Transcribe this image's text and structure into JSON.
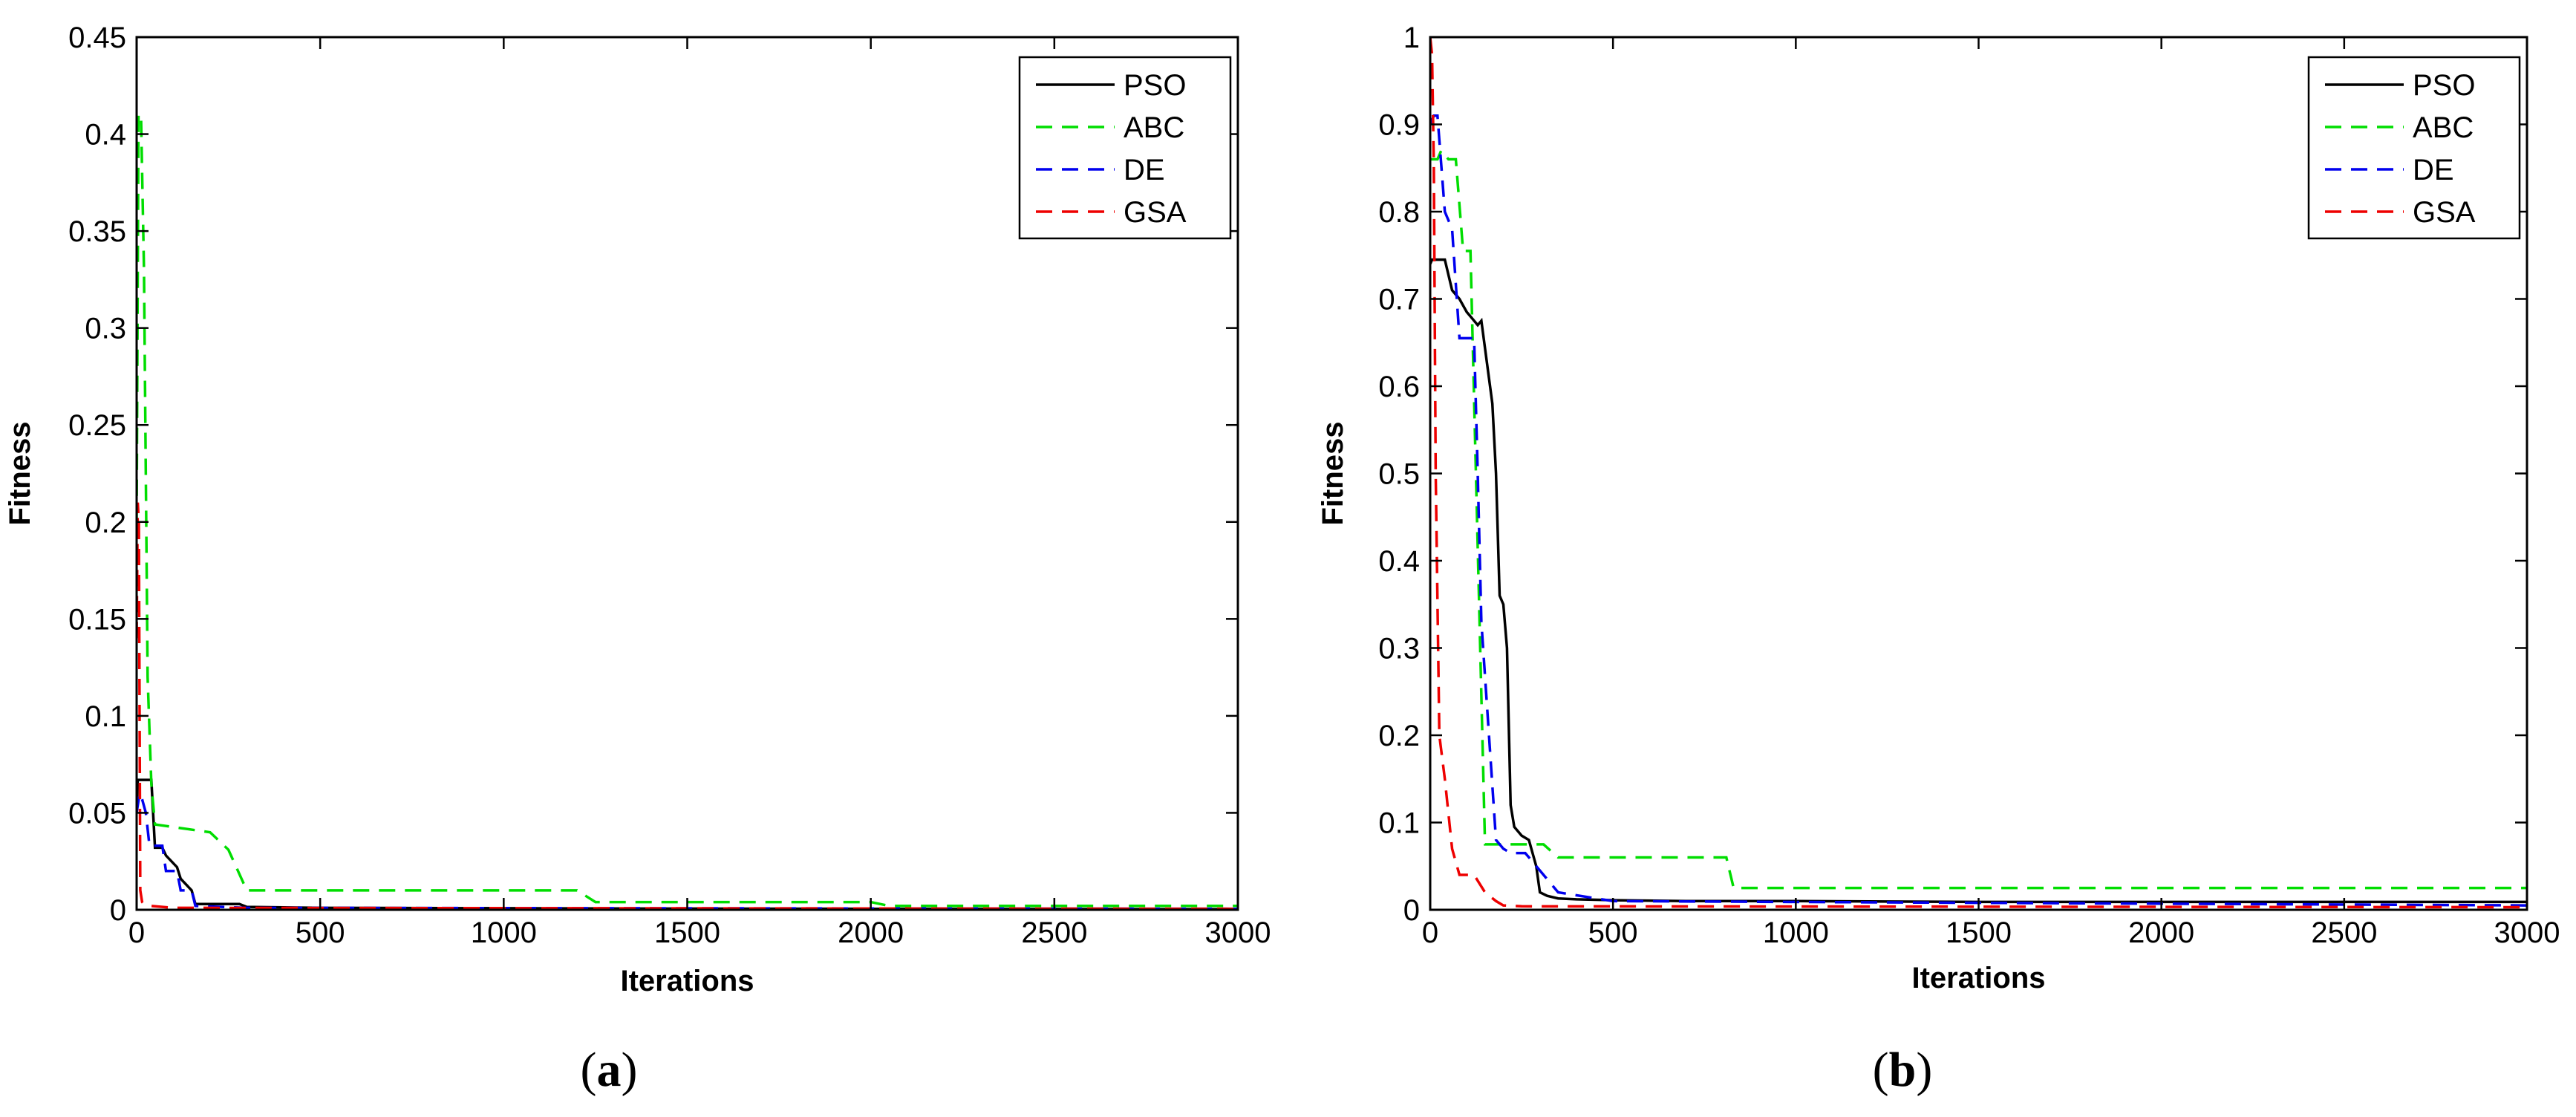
{
  "chart_data": [
    {
      "type": "line",
      "panel_label": {
        "open": "(",
        "letter": "a",
        "close": ")"
      },
      "title": "",
      "xlabel": "Iterations",
      "ylabel": "Fitness",
      "xlim": [
        0,
        3000
      ],
      "ylim": [
        0,
        0.45
      ],
      "xticks": [
        0,
        500,
        1000,
        1500,
        2000,
        2500,
        3000
      ],
      "yticks": [
        0,
        0.05,
        0.1,
        0.15,
        0.2,
        0.25,
        0.3,
        0.35,
        0.4,
        0.45
      ],
      "ytick_labels": [
        "0",
        "0.05",
        "0.1",
        "0.15",
        "0.2",
        "0.25",
        "0.3",
        "0.35",
        "0.4",
        "0.45"
      ],
      "grid": false,
      "legend_position": "top-right",
      "series": [
        {
          "name": "PSO",
          "color": "#000000",
          "dash": "solid",
          "x": [
            0,
            3,
            6,
            10,
            15,
            20,
            40,
            50,
            70,
            80,
            110,
            120,
            150,
            160,
            200,
            280,
            300,
            500,
            1000,
            1500,
            2000,
            2500,
            3000
          ],
          "y": [
            0.05,
            0.067,
            0.067,
            0.067,
            0.067,
            0.067,
            0.067,
            0.032,
            0.032,
            0.028,
            0.022,
            0.016,
            0.01,
            0.003,
            0.003,
            0.003,
            0.0015,
            0.001,
            0.0008,
            0.0006,
            0.0005,
            0.0004,
            0.0003
          ]
        },
        {
          "name": "ABC",
          "color": "#00dd00",
          "dash": "dashed",
          "x": [
            0,
            5,
            12,
            20,
            30,
            40,
            50,
            200,
            250,
            300,
            1200,
            1250,
            2000,
            2050,
            3000
          ],
          "y": [
            0.2,
            0.41,
            0.41,
            0.33,
            0.12,
            0.065,
            0.044,
            0.04,
            0.031,
            0.01,
            0.01,
            0.004,
            0.004,
            0.002,
            0.002
          ]
        },
        {
          "name": "DE",
          "color": "#0000ee",
          "dash": "dashed",
          "x": [
            0,
            8,
            15,
            25,
            35,
            70,
            80,
            110,
            120,
            150,
            160,
            300,
            3000
          ],
          "y": [
            0.05,
            0.06,
            0.057,
            0.05,
            0.033,
            0.033,
            0.02,
            0.02,
            0.01,
            0.01,
            0.002,
            0.001,
            0.0005
          ]
        },
        {
          "name": "GSA",
          "color": "#ee0000",
          "dash": "dashed",
          "x": [
            0,
            3,
            6,
            10,
            15,
            20,
            40,
            100,
            3000
          ],
          "y": [
            0.14,
            0.21,
            0.2,
            0.01,
            0.004,
            0.003,
            0.002,
            0.001,
            0.0005
          ]
        }
      ]
    },
    {
      "type": "line",
      "panel_label": {
        "open": "(",
        "letter": "b",
        "close": ")"
      },
      "title": "",
      "xlabel": "Iterations",
      "ylabel": "Fitness",
      "xlim": [
        0,
        3000
      ],
      "ylim": [
        0,
        1
      ],
      "xticks": [
        0,
        500,
        1000,
        1500,
        2000,
        2500,
        3000
      ],
      "yticks": [
        0,
        0.1,
        0.2,
        0.3,
        0.4,
        0.5,
        0.6,
        0.7,
        0.8,
        0.9,
        1
      ],
      "ytick_labels": [
        "0",
        "0.1",
        "0.2",
        "0.3",
        "0.4",
        "0.5",
        "0.6",
        "0.7",
        "0.8",
        "0.9",
        "1"
      ],
      "grid": false,
      "legend_position": "top-right",
      "series": [
        {
          "name": "PSO",
          "color": "#000000",
          "dash": "solid",
          "x": [
            0,
            5,
            40,
            60,
            80,
            100,
            110,
            130,
            140,
            170,
            180,
            190,
            200,
            210,
            220,
            230,
            250,
            270,
            290,
            300,
            320,
            350,
            400,
            500,
            700,
            1000,
            1500,
            2000,
            2500,
            3000
          ],
          "y": [
            0.74,
            0.745,
            0.745,
            0.71,
            0.7,
            0.685,
            0.68,
            0.67,
            0.675,
            0.58,
            0.5,
            0.36,
            0.35,
            0.3,
            0.12,
            0.095,
            0.085,
            0.08,
            0.05,
            0.02,
            0.016,
            0.013,
            0.012,
            0.011,
            0.01,
            0.01,
            0.009,
            0.009,
            0.009,
            0.009
          ]
        },
        {
          "name": "ABC",
          "color": "#00dd00",
          "dash": "dashed",
          "x": [
            0,
            20,
            30,
            50,
            70,
            90,
            110,
            150,
            210,
            310,
            350,
            810,
            830,
            3000
          ],
          "y": [
            0.86,
            0.86,
            0.87,
            0.86,
            0.86,
            0.755,
            0.755,
            0.075,
            0.075,
            0.075,
            0.06,
            0.06,
            0.025,
            0.025
          ]
        },
        {
          "name": "DE",
          "color": "#0000ee",
          "dash": "dashed",
          "x": [
            0,
            10,
            20,
            40,
            60,
            80,
            120,
            130,
            140,
            180,
            200,
            220,
            240,
            260,
            300,
            350,
            500,
            3000
          ],
          "y": [
            0.9,
            0.91,
            0.91,
            0.8,
            0.78,
            0.655,
            0.655,
            0.5,
            0.33,
            0.08,
            0.07,
            0.065,
            0.065,
            0.065,
            0.045,
            0.02,
            0.01,
            0.005
          ]
        },
        {
          "name": "GSA",
          "color": "#ee0000",
          "dash": "dashed",
          "x": [
            0,
            5,
            10,
            15,
            25,
            40,
            60,
            80,
            120,
            150,
            180,
            200,
            250,
            3000
          ],
          "y": [
            1,
            0.98,
            0.85,
            0.5,
            0.2,
            0.15,
            0.07,
            0.04,
            0.04,
            0.02,
            0.01,
            0.005,
            0.004,
            0.003
          ]
        }
      ]
    }
  ]
}
